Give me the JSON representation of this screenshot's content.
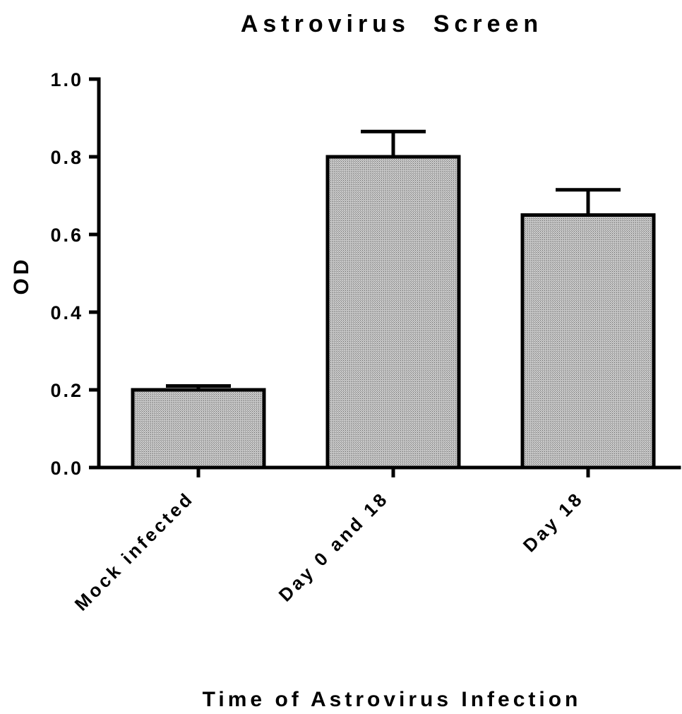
{
  "chart_data": {
    "type": "bar",
    "title": "Astrovirus  Screen",
    "xlabel": "Time of Astrovirus Infection",
    "ylabel": "OD",
    "categories": [
      "Mock infected",
      "Day 0 and 18",
      "Day 18"
    ],
    "values": [
      0.2,
      0.8,
      0.65
    ],
    "error_upper": [
      0.21,
      0.865,
      0.715
    ],
    "ylim": [
      0,
      1.0
    ],
    "yticks": [
      "0.0",
      "0.2",
      "0.4",
      "0.6",
      "0.8",
      "1.0"
    ],
    "ytick_values": [
      0,
      0.2,
      0.4,
      0.6,
      0.8,
      1.0
    ],
    "grid": false,
    "legend": "none",
    "bar_color": "#a8a8a8",
    "edge_color": "#000000"
  }
}
